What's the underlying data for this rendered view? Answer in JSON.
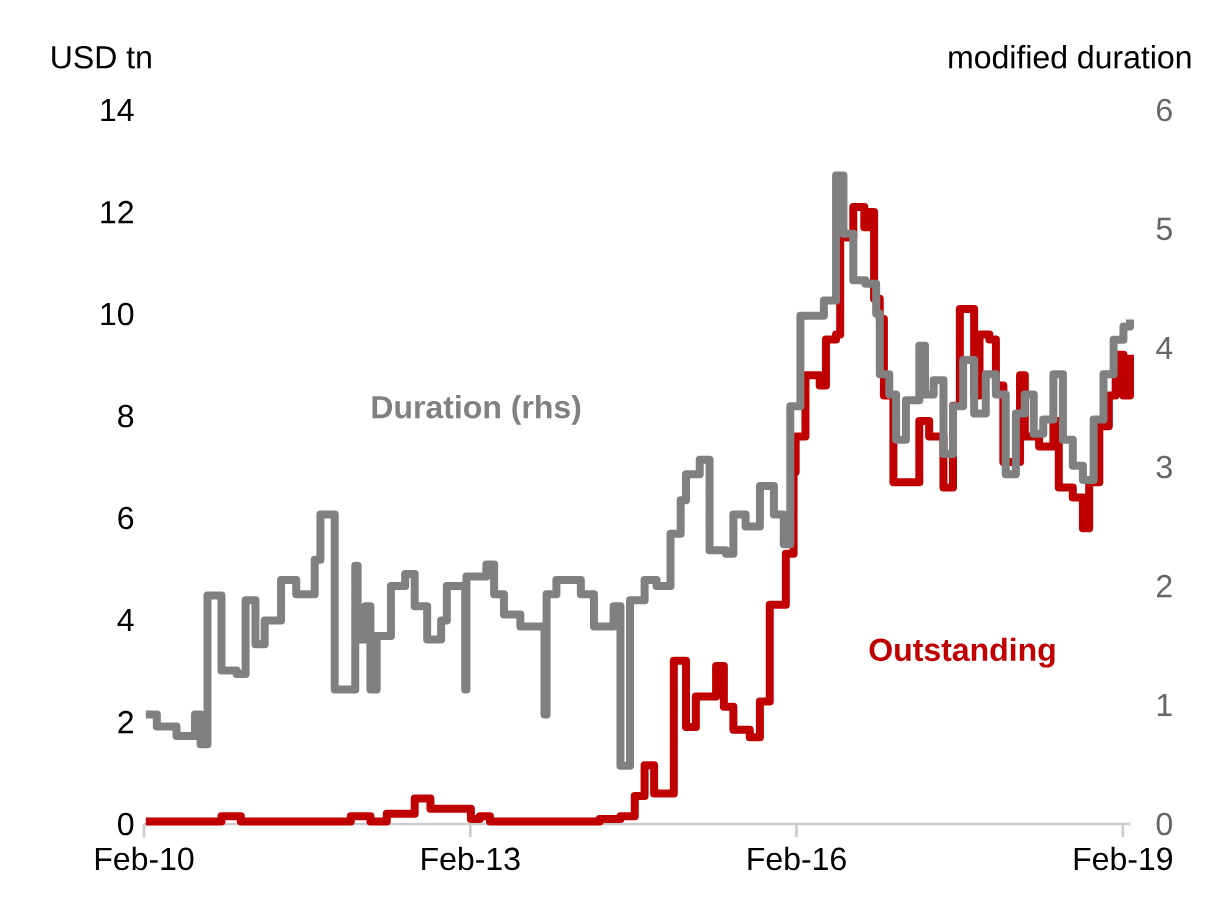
{
  "chart_data": {
    "type": "step",
    "ylabel": "USD tn",
    "y2label": "modified duration",
    "xlim": [
      "2010-02",
      "2019-02-25"
    ],
    "xticks": [
      {
        "value": "2010-02",
        "label": "Feb-10"
      },
      {
        "value": "2013-02",
        "label": "Feb-13"
      },
      {
        "value": "2016-02",
        "label": "Feb-16"
      },
      {
        "value": "2019-02",
        "label": "Feb-19"
      }
    ],
    "ylim": [
      0,
      14
    ],
    "yticks": [
      0,
      2,
      4,
      6,
      8,
      10,
      12,
      14
    ],
    "y2lim": [
      0,
      6
    ],
    "y2ticks": [
      0,
      1,
      2,
      3,
      4,
      5,
      6
    ],
    "series": [
      {
        "name": "Outstanding",
        "color": "#c00000",
        "x": [
          "2010-02-07",
          "2010-08-10",
          "2010-10-19",
          "2010-12-23",
          "2011-10-22",
          "2011-12-27",
          "2012-03-02",
          "2012-04-26",
          "2012-07-29",
          "2012-09-20",
          "2012-12-16",
          "2013-02-03",
          "2013-03-05",
          "2013-04-08",
          "2014-04-11",
          "2014-06-20",
          "2014-08-07",
          "2014-09-09",
          "2014-10-11",
          "2014-12-16",
          "2015-01-26",
          "2015-02-28",
          "2015-05-07",
          "2015-06-02",
          "2015-07-04",
          "2015-08-28",
          "2015-10-01",
          "2015-11-03",
          "2015-12-27",
          "2016-01-22",
          "2016-01-29",
          "2016-03-02",
          "2016-04-19",
          "2016-05-10",
          "2016-06-13",
          "2016-06-27",
          "2016-08-10",
          "2016-09-16",
          "2016-10-04",
          "2016-10-19",
          "2016-11-07",
          "2016-11-21",
          "2016-12-23",
          "2017-02-03",
          "2017-03-20",
          "2017-04-22",
          "2017-06-09",
          "2017-07-11",
          "2017-08-03",
          "2017-09-20",
          "2017-10-08",
          "2017-11-10",
          "2017-12-02",
          "2017-12-27",
          "2018-02-21",
          "2018-03-09",
          "2018-04-26",
          "2018-06-13",
          "2018-07-01",
          "2018-08-17",
          "2018-09-20",
          "2018-10-11",
          "2018-11-14",
          "2018-12-16",
          "2019-01-08",
          "2019-02-03",
          "2019-02-25"
        ],
        "values": [
          0.05,
          0.05,
          0.15,
          0.05,
          0.05,
          0.15,
          0.05,
          0.2,
          0.5,
          0.3,
          0.3,
          0.1,
          0.15,
          0.05,
          0.1,
          0.15,
          0.55,
          1.15,
          0.6,
          3.2,
          1.9,
          2.5,
          3.1,
          2.3,
          1.85,
          1.7,
          2.4,
          4.3,
          5.3,
          6.9,
          7.6,
          8.8,
          8.6,
          9.5,
          9.6,
          11.5,
          12.1,
          11.7,
          12.0,
          10.3,
          9.9,
          8.4,
          6.7,
          6.7,
          7.9,
          7.6,
          6.6,
          8.2,
          10.1,
          8.4,
          9.6,
          9.5,
          8.6,
          7.1,
          8.8,
          7.6,
          7.4,
          7.9,
          6.6,
          6.4,
          5.8,
          6.7,
          7.8,
          8.4,
          9.2,
          8.4,
          9.2
        ]
      },
      {
        "name": "Duration (rhs)",
        "color": "#808080",
        "axis": "y2",
        "x": [
          "2010-02-07",
          "2010-03-16",
          "2010-05-21",
          "2010-07-22",
          "2010-08-10",
          "2010-09-02",
          "2010-10-19",
          "2010-12-09",
          "2011-01-08",
          "2011-02-10",
          "2011-03-13",
          "2011-05-07",
          "2011-06-27",
          "2011-08-28",
          "2011-09-16",
          "2011-11-03",
          "2012-01-11",
          "2012-01-19",
          "2012-02-14",
          "2012-03-02",
          "2012-03-23",
          "2012-05-10",
          "2012-06-27",
          "2012-07-29",
          "2012-09-09",
          "2012-10-26",
          "2012-11-14",
          "2013-01-15",
          "2013-01-19",
          "2013-03-27",
          "2013-04-22",
          "2013-05-25",
          "2013-07-19",
          "2013-10-08",
          "2013-10-15",
          "2013-11-17",
          "2014-02-07",
          "2014-03-23",
          "2014-05-28",
          "2014-06-20",
          "2014-07-22",
          "2014-09-09",
          "2014-10-19",
          "2014-12-05",
          "2015-01-08",
          "2015-01-26",
          "2015-03-13",
          "2015-04-15",
          "2015-06-09",
          "2015-07-04",
          "2015-08-14",
          "2015-10-01",
          "2015-11-17",
          "2015-12-20",
          "2016-01-11",
          "2016-02-14",
          "2016-04-08",
          "2016-05-03",
          "2016-06-13",
          "2016-07-08",
          "2016-08-10",
          "2016-09-20",
          "2016-10-26",
          "2016-11-07",
          "2016-12-09",
          "2017-01-01",
          "2017-02-03",
          "2017-03-20",
          "2017-04-08",
          "2017-05-07",
          "2017-06-09",
          "2017-07-11",
          "2017-08-14",
          "2017-09-20",
          "2017-10-29",
          "2017-12-02",
          "2018-01-04",
          "2018-02-07",
          "2018-03-09",
          "2018-04-08",
          "2018-05-10",
          "2018-06-13",
          "2018-07-15",
          "2018-08-17",
          "2018-09-20",
          "2018-10-26",
          "2018-11-28",
          "2019-01-01",
          "2019-02-03",
          "2019-02-25"
        ],
        "values": [
          0.92,
          0.82,
          0.74,
          0.92,
          0.67,
          1.92,
          1.29,
          1.26,
          1.88,
          1.51,
          1.71,
          2.05,
          1.93,
          2.22,
          2.6,
          1.13,
          2.17,
          1.55,
          1.83,
          1.13,
          1.58,
          2.0,
          2.1,
          1.83,
          1.55,
          1.71,
          2.0,
          1.13,
          2.08,
          2.18,
          1.93,
          1.76,
          1.66,
          0.92,
          1.93,
          2.05,
          1.93,
          1.66,
          1.83,
          0.49,
          1.88,
          2.05,
          2.0,
          2.44,
          2.72,
          2.94,
          3.06,
          2.3,
          2.27,
          2.6,
          2.5,
          2.84,
          2.6,
          2.35,
          3.51,
          4.27,
          4.27,
          4.4,
          5.45,
          4.96,
          4.57,
          4.54,
          4.29,
          3.78,
          3.61,
          3.23,
          3.56,
          4.02,
          3.61,
          3.73,
          3.11,
          3.51,
          3.9,
          3.45,
          3.78,
          3.61,
          2.94,
          3.45,
          3.61,
          3.28,
          3.4,
          3.78,
          3.23,
          3.01,
          2.89,
          3.4,
          3.78,
          4.07,
          4.18,
          4.24
        ]
      }
    ]
  }
}
